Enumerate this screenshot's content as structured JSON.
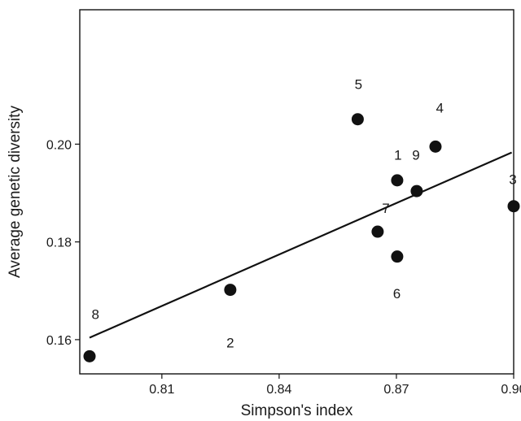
{
  "chart_data": {
    "type": "scatter",
    "title": "",
    "xlabel": "Simpson's index",
    "ylabel": "Average genetic diversity",
    "xlim": [
      0.789,
      0.9
    ],
    "ylim": [
      0.153,
      0.2275
    ],
    "xticks": [
      0.81,
      0.84,
      0.87,
      0.9
    ],
    "xtick_labels": [
      "0.81",
      "0.84",
      "0.87",
      "0.90"
    ],
    "yticks": [
      0.16,
      0.18,
      0.2
    ],
    "ytick_labels": [
      "0.16",
      "0.18",
      "0.20"
    ],
    "grid": false,
    "points": [
      {
        "x": 0.7915,
        "y": 0.1566
      },
      {
        "x": 0.8275,
        "y": 0.1702
      },
      {
        "x": 0.8601,
        "y": 0.2051
      },
      {
        "x": 0.8652,
        "y": 0.1821
      },
      {
        "x": 0.8702,
        "y": 0.1926
      },
      {
        "x": 0.8702,
        "y": 0.177
      },
      {
        "x": 0.8752,
        "y": 0.1904
      },
      {
        "x": 0.88,
        "y": 0.1995
      },
      {
        "x": 0.9,
        "y": 0.1873
      }
    ],
    "annotations": [
      {
        "text": "5",
        "x": 0.8603,
        "y": 0.2123
      },
      {
        "text": "4",
        "x": 0.8811,
        "y": 0.2075
      },
      {
        "text": "1",
        "x": 0.8704,
        "y": 0.1978
      },
      {
        "text": "9",
        "x": 0.875,
        "y": 0.1978
      },
      {
        "text": "3",
        "x": 0.8998,
        "y": 0.1928
      },
      {
        "text": "7",
        "x": 0.8673,
        "y": 0.1869
      },
      {
        "text": "6",
        "x": 0.8701,
        "y": 0.1695
      },
      {
        "text": "8",
        "x": 0.793,
        "y": 0.1652
      },
      {
        "text": "2",
        "x": 0.8275,
        "y": 0.1594
      }
    ],
    "trendline": {
      "x": [
        0.7915,
        0.8995
      ],
      "y": [
        0.1604,
        0.1983
      ]
    }
  }
}
